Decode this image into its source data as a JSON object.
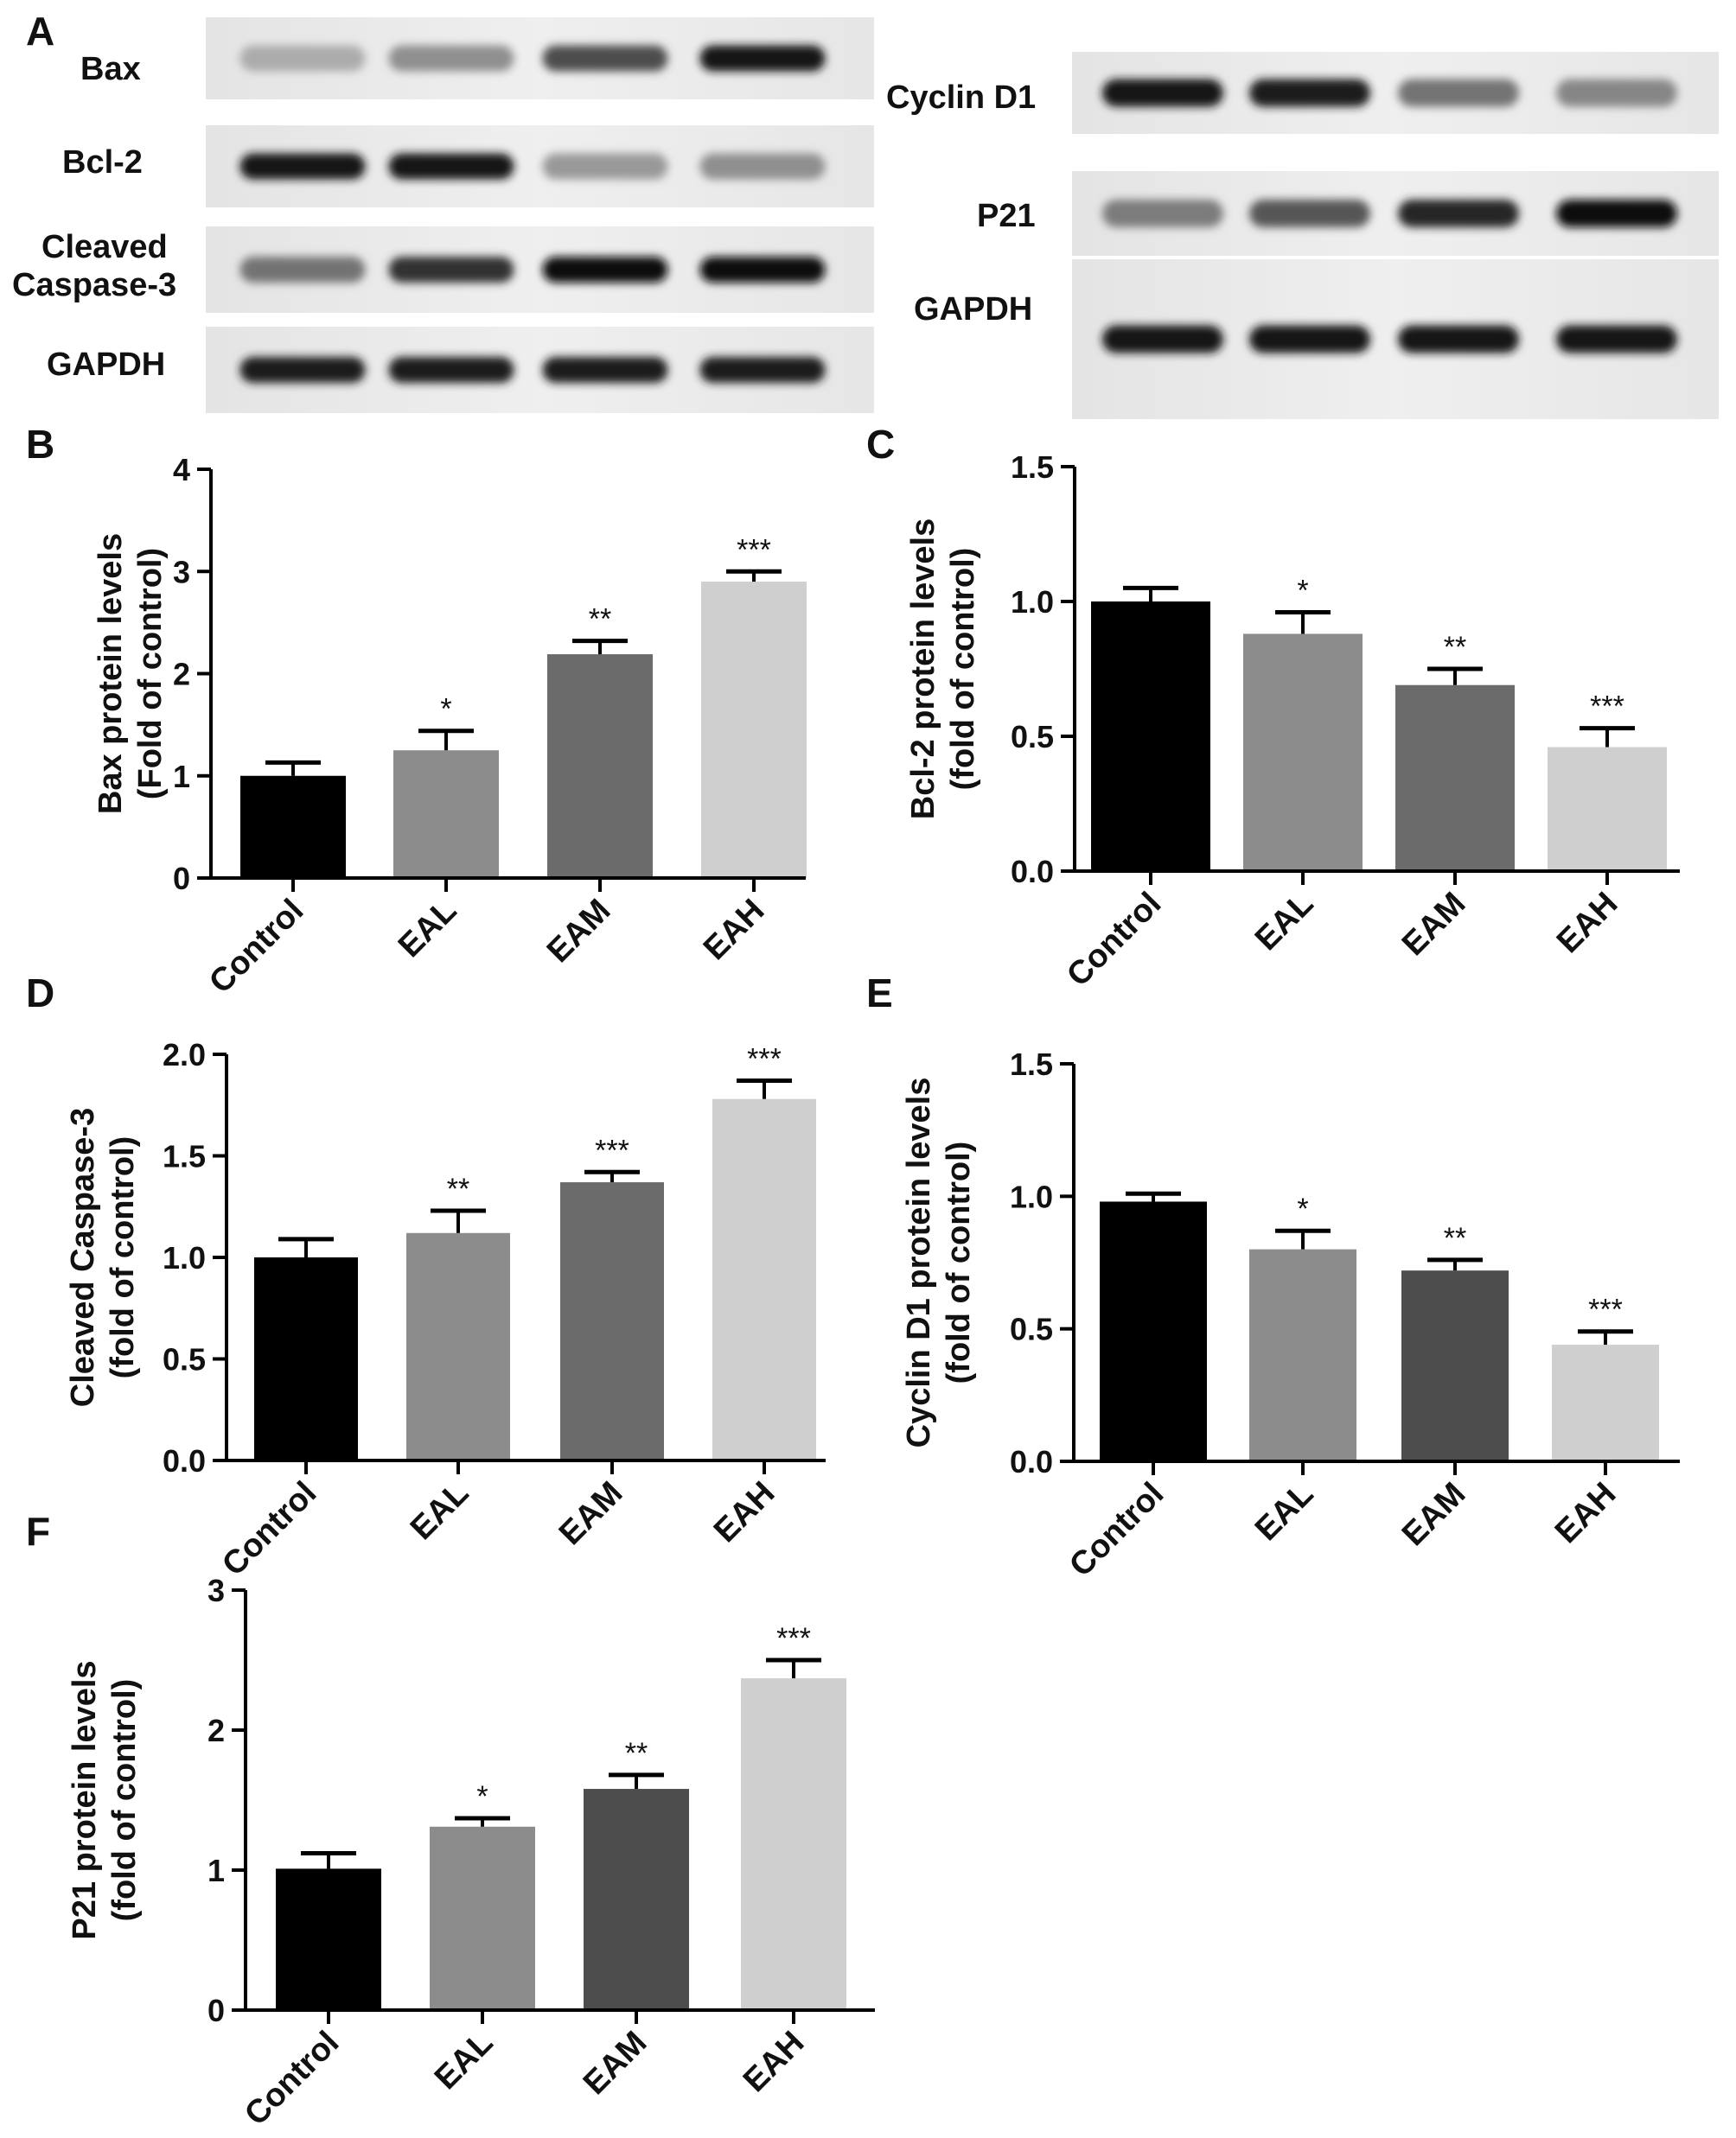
{
  "panels": {
    "A": "A",
    "B": "B",
    "C": "C",
    "D": "D",
    "E": "E",
    "F": "F"
  },
  "blots": {
    "left_labels": [
      "Bax",
      "Bcl-2",
      "Cleaved",
      "Caspase-3",
      "GAPDH"
    ],
    "right_labels": [
      "Cyclin D1",
      "P21",
      "GAPDH"
    ],
    "left_band_intensity": {
      "Bax": [
        0.15,
        0.3,
        0.65,
        0.95
      ],
      "Bcl-2": [
        0.95,
        0.95,
        0.25,
        0.3
      ],
      "Cleaved Caspase-3": [
        0.45,
        0.8,
        0.98,
        0.98
      ],
      "GAPDH": [
        0.9,
        0.9,
        0.9,
        0.9
      ]
    },
    "right_band_intensity": {
      "Cyclin D1": [
        0.95,
        0.9,
        0.45,
        0.35
      ],
      "P21": [
        0.4,
        0.6,
        0.85,
        1.0
      ],
      "GAPDH": [
        0.95,
        0.95,
        0.95,
        0.95
      ]
    }
  },
  "chart_data": [
    {
      "id": "B",
      "type": "bar",
      "categories": [
        "Control",
        "EAL",
        "EAM",
        "EAH"
      ],
      "values": [
        1.0,
        1.25,
        2.19,
        2.9
      ],
      "errors": [
        0.13,
        0.19,
        0.13,
        0.1
      ],
      "significance": [
        "",
        "*",
        "**",
        "***"
      ],
      "colors": [
        "#000000",
        "#8c8c8c",
        "#6b6b6b",
        "#cfcfcf"
      ],
      "ylabel_lines": [
        "Bax protein levels",
        "(Fold of control)"
      ],
      "ylim": [
        0,
        4
      ],
      "yticks": [
        "0",
        "1",
        "2",
        "3",
        "4"
      ]
    },
    {
      "id": "C",
      "type": "bar",
      "categories": [
        "Control",
        "EAL",
        "EAM",
        "EAH"
      ],
      "values": [
        1.0,
        0.88,
        0.69,
        0.46
      ],
      "errors": [
        0.05,
        0.08,
        0.06,
        0.07
      ],
      "significance": [
        "",
        "*",
        "**",
        "***"
      ],
      "colors": [
        "#000000",
        "#8c8c8c",
        "#6b6b6b",
        "#cfcfcf"
      ],
      "ylabel_lines": [
        "Bcl-2 protein levels",
        "(fold of control)"
      ],
      "ylim": [
        0,
        1.5
      ],
      "yticks": [
        "0.0",
        "0.5",
        "1.0",
        "1.5"
      ]
    },
    {
      "id": "D",
      "type": "bar",
      "categories": [
        "Control",
        "EAL",
        "EAM",
        "EAH"
      ],
      "values": [
        1.0,
        1.12,
        1.37,
        1.78
      ],
      "errors": [
        0.09,
        0.11,
        0.05,
        0.09
      ],
      "significance": [
        "",
        "**",
        "***",
        "***"
      ],
      "colors": [
        "#000000",
        "#8c8c8c",
        "#6b6b6b",
        "#cfcfcf"
      ],
      "ylabel_lines": [
        "Cleaved Caspase-3",
        "(fold of control)"
      ],
      "ylim": [
        0,
        2.0
      ],
      "yticks": [
        "0.0",
        "0.5",
        "1.0",
        "1.5",
        "2.0"
      ]
    },
    {
      "id": "E",
      "type": "bar",
      "categories": [
        "Control",
        "EAL",
        "EAM",
        "EAH"
      ],
      "values": [
        0.98,
        0.8,
        0.72,
        0.44
      ],
      "errors": [
        0.03,
        0.07,
        0.04,
        0.05
      ],
      "significance": [
        "",
        "*",
        "**",
        "***"
      ],
      "colors": [
        "#000000",
        "#8c8c8c",
        "#4d4d4d",
        "#cfcfcf"
      ],
      "ylabel_lines": [
        "Cyclin D1 protein levels",
        "(fold of control)"
      ],
      "ylim": [
        0,
        1.5
      ],
      "yticks": [
        "0.0",
        "0.5",
        "1.0",
        "1.5"
      ]
    },
    {
      "id": "F",
      "type": "bar",
      "categories": [
        "Control",
        "EAL",
        "EAM",
        "EAH"
      ],
      "values": [
        1.01,
        1.31,
        1.58,
        2.37
      ],
      "errors": [
        0.11,
        0.06,
        0.1,
        0.13
      ],
      "significance": [
        "",
        "*",
        "**",
        "***"
      ],
      "colors": [
        "#000000",
        "#8c8c8c",
        "#4d4d4d",
        "#cfcfcf"
      ],
      "ylabel_lines": [
        "P21 protein levels",
        "(fold of control)"
      ],
      "ylim": [
        0,
        3
      ],
      "yticks": [
        "0",
        "1",
        "2",
        "3"
      ]
    }
  ]
}
